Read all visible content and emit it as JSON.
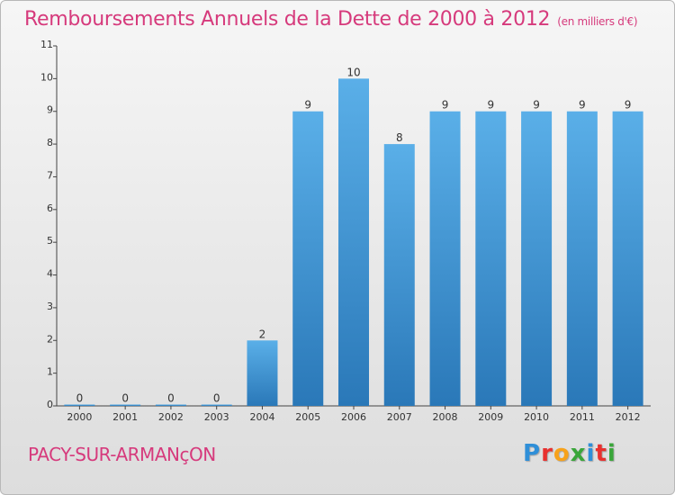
{
  "header": {
    "title": "Remboursements Annuels de la Dette de 2000 à 2012",
    "subtitle": "(en milliers d'€)"
  },
  "footer": {
    "city": "PACY-SUR-ARMANçON",
    "brand": "Proxiti",
    "brand_colors": [
      "#2f8fd8",
      "#e8312f",
      "#f7a21b",
      "#3aa63a",
      "#2f8fd8",
      "#e8312f",
      "#3aa63a"
    ]
  },
  "colors": {
    "accent": "#d63a7c",
    "bar_top": "#5aafe8",
    "bar_bottom": "#2a78b8",
    "axis": "#444444",
    "grid": "#999999"
  },
  "chart_data": {
    "type": "bar",
    "categories": [
      "2000",
      "2001",
      "2002",
      "2003",
      "2004",
      "2005",
      "2006",
      "2007",
      "2008",
      "2009",
      "2010",
      "2011",
      "2012"
    ],
    "values": [
      0,
      0,
      0,
      0,
      2,
      9,
      10,
      8,
      9,
      9,
      9,
      9,
      9
    ],
    "data_labels": [
      "0",
      "0",
      "0",
      "0",
      "2",
      "9",
      "10",
      "8",
      "9",
      "9",
      "9",
      "9",
      "9"
    ],
    "yticks": [
      "0",
      "1",
      "2",
      "3",
      "4",
      "5",
      "6",
      "7",
      "8",
      "9",
      "10",
      "11"
    ],
    "ylim": [
      0,
      11
    ],
    "grid": false,
    "legend": "none"
  }
}
